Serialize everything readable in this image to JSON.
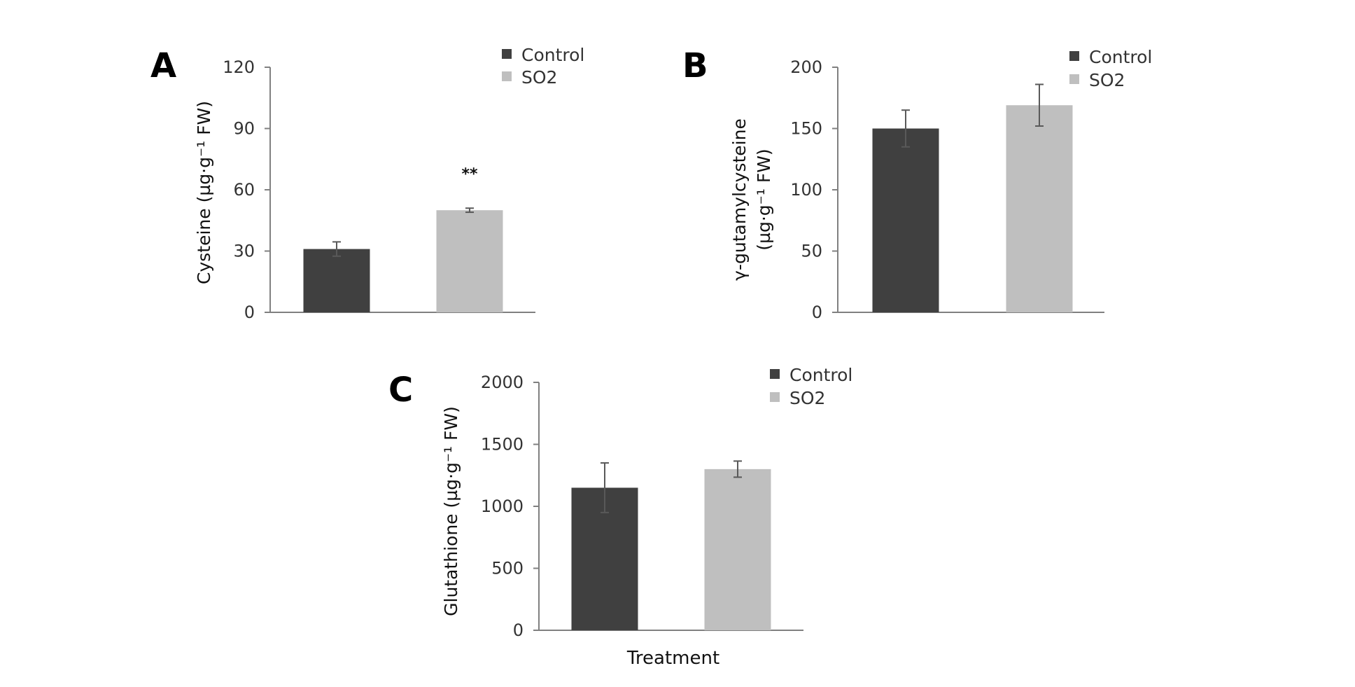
{
  "chart_data": [
    {
      "panel": "A",
      "type": "bar",
      "categories": [
        "Control",
        "SO2"
      ],
      "values": [
        31,
        50
      ],
      "errors": [
        3.5,
        1
      ],
      "significance": [
        "",
        "**"
      ],
      "ylabel": "Cysteine (µg·g⁻¹ FW)",
      "ylim": [
        0,
        120
      ],
      "yticks": [
        0,
        30,
        60,
        90,
        120
      ],
      "legend": [
        "Control",
        "SO2"
      ],
      "xlabel": ""
    },
    {
      "panel": "B",
      "type": "bar",
      "categories": [
        "Control",
        "SO2"
      ],
      "values": [
        150,
        169
      ],
      "errors": [
        15,
        17
      ],
      "significance": [
        "",
        ""
      ],
      "ylabel_line1": "γ-gutamylcysteine",
      "ylabel_line2": "(µg·g⁻¹ FW)",
      "ylim": [
        0,
        200
      ],
      "yticks": [
        0,
        50,
        100,
        150,
        200
      ],
      "legend": [
        "Control",
        "SO2"
      ],
      "xlabel": ""
    },
    {
      "panel": "C",
      "type": "bar",
      "categories": [
        "Control",
        "SO2"
      ],
      "values": [
        1150,
        1300
      ],
      "errors": [
        200,
        65
      ],
      "significance": [
        "",
        ""
      ],
      "ylabel": "Glutathione (µg·g⁻¹ FW)",
      "ylim": [
        0,
        2000
      ],
      "yticks": [
        0,
        500,
        1000,
        1500,
        2000
      ],
      "legend": [
        "Control",
        "SO2"
      ],
      "xlabel": "Treatment"
    }
  ],
  "colors": {
    "control": "#404040",
    "so2": "#bfbfbf",
    "axis": "#808080",
    "error": "#595959"
  }
}
